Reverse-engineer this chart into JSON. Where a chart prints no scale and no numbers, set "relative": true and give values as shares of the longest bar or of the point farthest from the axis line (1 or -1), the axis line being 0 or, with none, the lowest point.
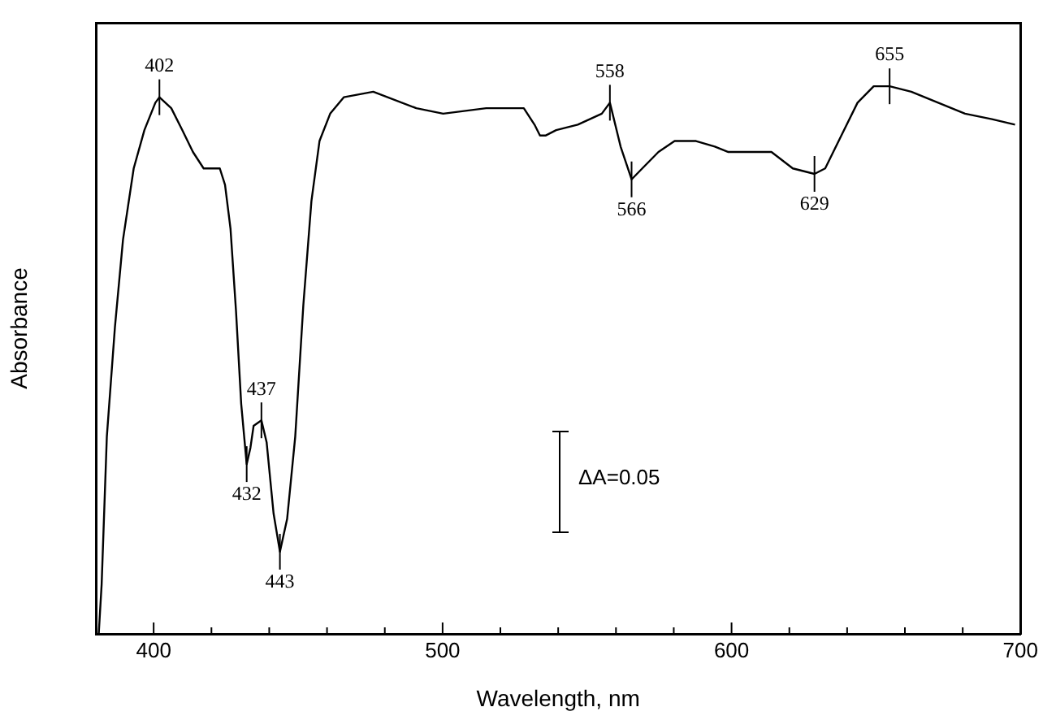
{
  "chart_data": {
    "type": "line",
    "relative": true,
    "xlabel": "Wavelength, nm",
    "ylabel": "Absorbance",
    "xlim": [
      380,
      700
    ],
    "xticks": [
      400,
      {
        "value": 420,
        "label": null
      },
      {
        "value": 440,
        "label": null
      },
      {
        "value": 460,
        "label": null
      },
      {
        "value": 480,
        "label": null
      },
      500,
      {
        "value": 520,
        "label": null
      },
      {
        "value": 540,
        "label": null
      },
      {
        "value": 560,
        "label": null
      },
      {
        "value": 580,
        "label": null
      },
      600,
      {
        "value": 620,
        "label": null
      },
      {
        "value": 640,
        "label": null
      },
      {
        "value": 660,
        "label": null
      },
      {
        "value": 680,
        "label": null
      },
      700
    ],
    "series": [
      {
        "color": "#000000",
        "x": [
          381.0,
          382.0,
          383.8,
          386.6,
          389.4,
          393.1,
          396.8,
          400.6,
          402.0,
          406.1,
          409.9,
          413.6,
          417.3,
          420.1,
          422.9,
          424.7,
          426.6,
          428.5,
          430.3,
          432.2,
          433.5,
          434.6,
          437.3,
          439.1,
          441.5,
          443.7,
          446.2,
          449.0,
          451.8,
          454.6,
          457.4,
          461.1,
          465.8,
          476.0,
          490.9,
          500.2,
          515.1,
          528.1,
          531.8,
          533.7,
          535.6,
          539.3,
          546.8,
          555.1,
          557.9,
          561.6,
          565.4,
          569.1,
          574.7,
          580.3,
          587.7,
          594.2,
          598.9,
          606.3,
          613.8,
          621.2,
          628.7,
          632.4,
          638.0,
          643.6,
          649.2,
          654.7,
          662.2,
          671.5,
          680.8,
          690.1,
          698.1
        ],
        "values": [
          0,
          0.09,
          0.36,
          0.56,
          0.72,
          0.85,
          0.92,
          0.97,
          0.98,
          0.96,
          0.92,
          0.88,
          0.85,
          0.85,
          0.85,
          0.82,
          0.74,
          0.59,
          0.42,
          0.31,
          0.34,
          0.38,
          0.39,
          0.35,
          0.22,
          0.15,
          0.21,
          0.36,
          0.6,
          0.79,
          0.9,
          0.95,
          0.98,
          0.99,
          0.96,
          0.95,
          0.96,
          0.96,
          0.93,
          0.91,
          0.91,
          0.92,
          0.93,
          0.95,
          0.97,
          0.89,
          0.83,
          0.85,
          0.88,
          0.9,
          0.9,
          0.89,
          0.88,
          0.88,
          0.88,
          0.85,
          0.84,
          0.85,
          0.91,
          0.97,
          1.0,
          1.0,
          0.99,
          0.97,
          0.95,
          0.94,
          0.93
        ]
      }
    ],
    "marker": "none",
    "line_style": "solid",
    "grid": false,
    "legend": false,
    "annotations": [
      {
        "text": "402",
        "x": 402,
        "y": 0.98
      },
      {
        "text": "432",
        "x": 432.2,
        "y": 0.31
      },
      {
        "text": "437",
        "x": 437.3,
        "y": 0.39
      },
      {
        "text": "443",
        "x": 443.7,
        "y": 0.15
      },
      {
        "text": "558",
        "x": 557.9,
        "y": 0.97
      },
      {
        "text": "566",
        "x": 565.4,
        "y": 0.83
      },
      {
        "text": "629",
        "x": 628.7,
        "y": 0.84
      },
      {
        "text": "655",
        "x": 654.7,
        "y": 1.0
      },
      "ΔA=0.05"
    ]
  }
}
